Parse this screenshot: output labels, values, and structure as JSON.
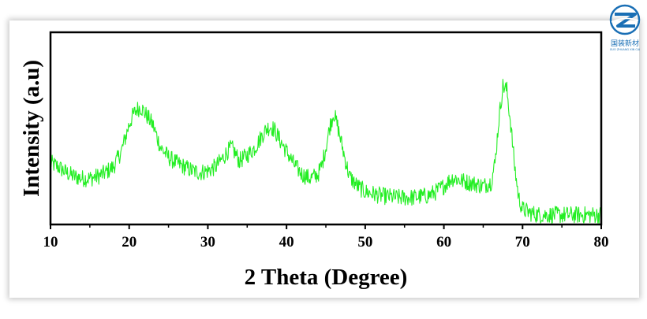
{
  "chart_data": {
    "type": "line",
    "title": "",
    "xlabel": "2 Theta (Degree)",
    "ylabel": "Intensity (a.u)",
    "xlim": [
      10,
      80
    ],
    "ylim": [
      0,
      100
    ],
    "xticks": [
      10,
      20,
      30,
      40,
      50,
      60,
      70,
      80
    ],
    "yticks_shown": false,
    "grid": false,
    "legend": "none",
    "series": [
      {
        "color": "#22ee22",
        "x": [
          10,
          11,
          12,
          13,
          14,
          15,
          16,
          17,
          18,
          19,
          19.5,
          20,
          20.5,
          21,
          21.5,
          22,
          22.5,
          23,
          23.5,
          24,
          25,
          26,
          27,
          28,
          29,
          30,
          31,
          32,
          32.5,
          33,
          33.5,
          34,
          35,
          36,
          37,
          37.5,
          38,
          38.5,
          39,
          40,
          41,
          42,
          43,
          44,
          44.5,
          45,
          45.5,
          46,
          46.5,
          47,
          47.5,
          48,
          49,
          50,
          52,
          54,
          56,
          58,
          59,
          60,
          60.5,
          61,
          61.5,
          62,
          63,
          64,
          65,
          66,
          66.5,
          67,
          67.5,
          68,
          68.5,
          69,
          69.5,
          70,
          71,
          72,
          74,
          76,
          78,
          80
        ],
        "y": [
          32,
          30,
          27,
          25,
          24,
          24,
          25,
          27,
          30,
          38,
          45,
          52,
          57,
          60,
          61,
          58,
          55,
          52,
          46,
          40,
          35,
          32,
          30,
          28,
          27,
          28,
          30,
          35,
          38,
          40,
          37,
          33,
          36,
          40,
          47,
          50,
          51,
          49,
          45,
          38,
          31,
          26,
          24,
          26,
          31,
          40,
          51,
          58,
          51,
          42,
          33,
          25,
          20,
          17,
          15,
          14,
          14,
          15,
          17,
          20,
          22,
          24,
          24,
          23,
          22,
          21,
          20,
          22,
          32,
          55,
          72,
          70,
          52,
          30,
          14,
          8,
          6,
          5,
          5,
          5,
          5,
          5
        ]
      }
    ]
  },
  "logo": {
    "text": "国装新材",
    "subtext": "GUO ZHUANG XIN CAI"
  }
}
